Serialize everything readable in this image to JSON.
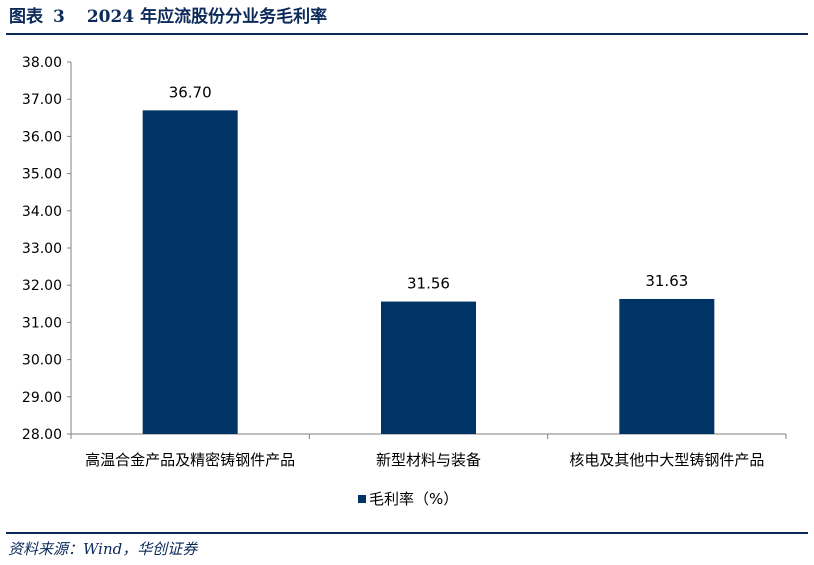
{
  "figure": {
    "label": "图表",
    "number": "3",
    "title": "2024 年应流股份分业务毛利率"
  },
  "source": "资料来源：Wind，华创证券",
  "colors": {
    "bar": "#003366",
    "title": "#0b2a5a",
    "axis": "#808080"
  },
  "chart_data": {
    "type": "bar",
    "title": "2024 年应流股份分业务毛利率",
    "categories": [
      "高温合金产品及精密铸钢件产品",
      "新型材料与装备",
      "核电及其他中大型铸钢件产品"
    ],
    "series": [
      {
        "name": "毛利率（%）",
        "values": [
          36.7,
          31.56,
          31.63
        ],
        "labels": [
          "36.70",
          "31.56",
          "31.63"
        ]
      }
    ],
    "y_ticks": [
      "38.00",
      "37.00",
      "36.00",
      "35.00",
      "34.00",
      "33.00",
      "32.00",
      "31.00",
      "30.00",
      "29.00",
      "28.00"
    ],
    "ylim": [
      28,
      38
    ],
    "grid": false,
    "legend_position": "bottom"
  }
}
